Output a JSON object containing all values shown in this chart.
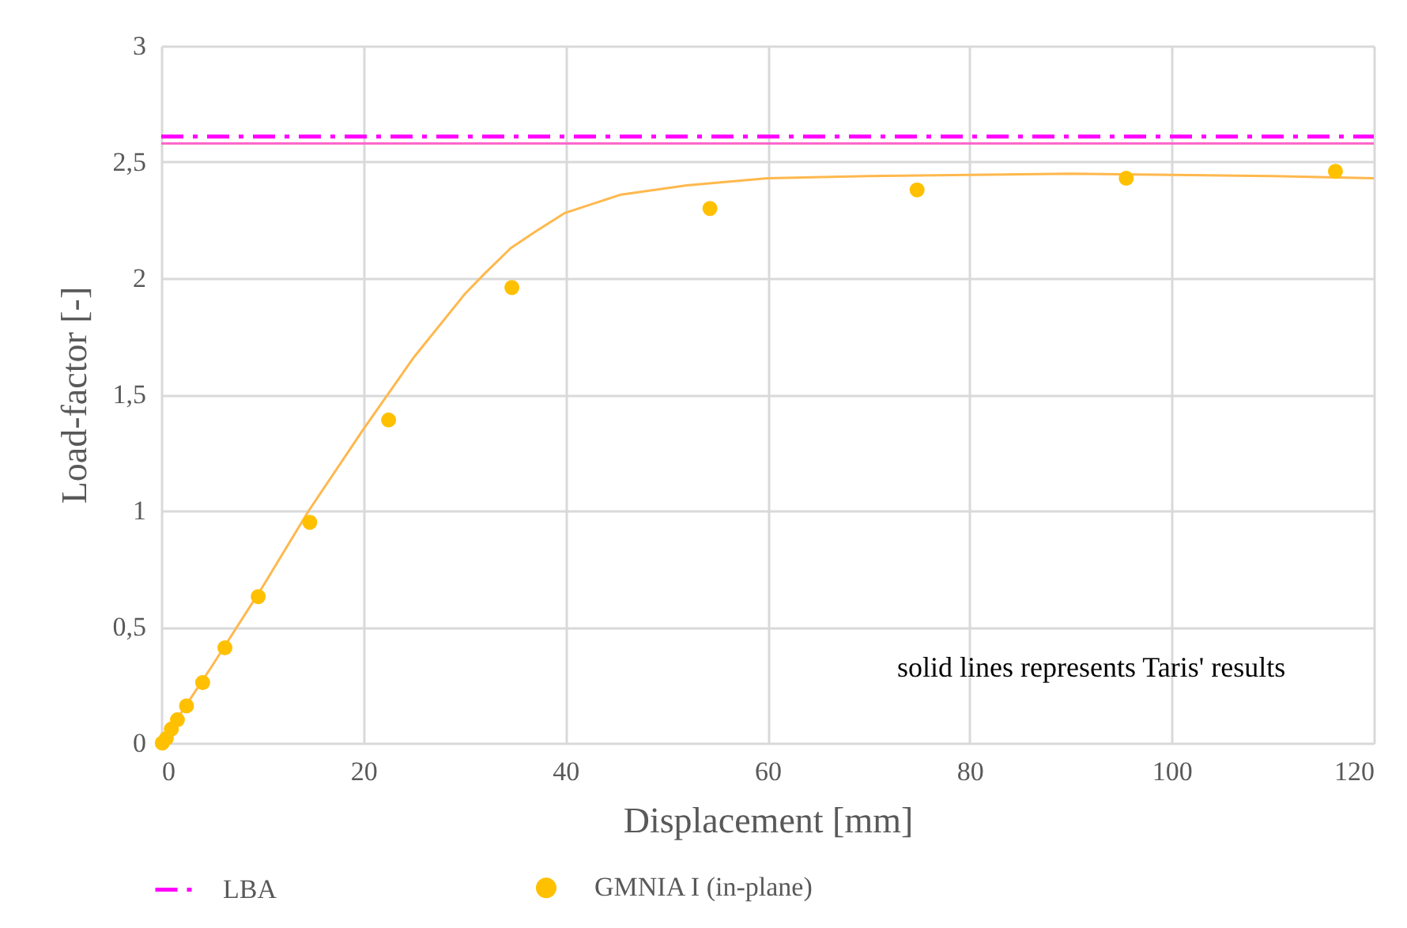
{
  "chart_data": {
    "type": "line",
    "xlabel": "Displacement [mm]",
    "ylabel": "Load-factor [-]",
    "xlim": [
      0,
      120
    ],
    "xticks": [
      0,
      20,
      40,
      60,
      80,
      100,
      120
    ],
    "ylim": [
      0,
      3
    ],
    "yticks": [
      0,
      {
        "value": 0.5,
        "label": "0,5"
      },
      1,
      {
        "value": 1.5,
        "label": "1,5"
      },
      2,
      {
        "value": 2.5,
        "label": "2,5"
      },
      3
    ],
    "grid": true,
    "legend": "bottom",
    "annotations": [
      "solid lines represents Taris' results"
    ],
    "series": [
      {
        "name": "LBA",
        "color": "#ff00ff",
        "line_style": "dashed",
        "marker": "none",
        "x": [
          0,
          120
        ],
        "values": [
          2.61,
          2.61
        ]
      },
      {
        "name": "GMNIA I (in-plane)",
        "type": "scatter",
        "color": "#ffc000",
        "marker": "circle",
        "x": [
          0.1,
          0.5,
          1.0,
          1.6,
          2.5,
          4.1,
          6.3,
          9.6,
          14.7,
          22.5,
          34.7,
          54.3,
          74.8,
          95.5,
          116.2
        ],
        "values": [
          0,
          0.02,
          0.06,
          0.1,
          0.16,
          0.26,
          0.41,
          0.63,
          0.95,
          1.39,
          1.96,
          2.3,
          2.38,
          2.43,
          2.46
        ]
      },
      {
        "color": "#ff66cc",
        "line_style": "solid",
        "marker": "none",
        "x": [
          0,
          120
        ],
        "values": [
          2.58,
          2.58
        ]
      },
      {
        "color": "#ffb84d",
        "line_style": "solid",
        "marker": "none",
        "x": [
          0,
          5,
          10,
          14.6,
          20,
          25,
          30,
          32,
          34.6,
          37,
          39.9,
          45.5,
          52,
          60,
          70,
          80,
          90,
          100,
          110,
          120
        ],
        "values": [
          0,
          0.33,
          0.67,
          1.0,
          1.35,
          1.66,
          1.93,
          2.02,
          2.13,
          2.2,
          2.28,
          2.36,
          2.4,
          2.43,
          2.44,
          2.445,
          2.45,
          2.445,
          2.44,
          2.43
        ]
      }
    ]
  }
}
